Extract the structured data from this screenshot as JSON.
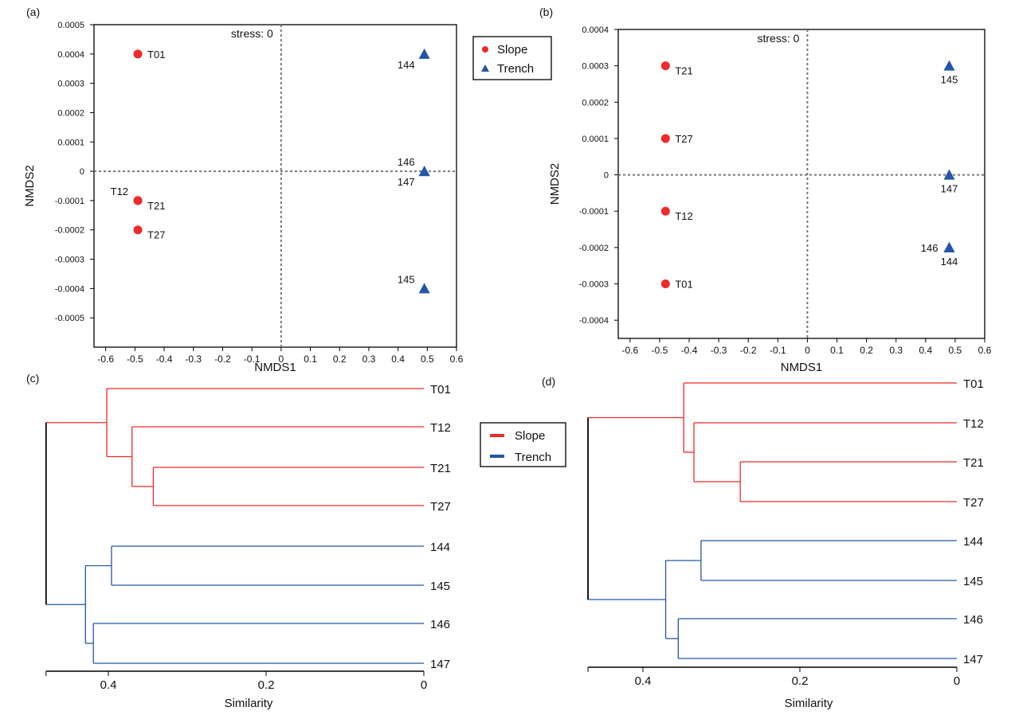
{
  "colors": {
    "Slope": "#ee2a2a",
    "Trench": "#2456a8",
    "root": "#000000",
    "axis": "#000000",
    "refline": "#777777"
  },
  "legend_scatter": {
    "items": [
      {
        "label": "Slope",
        "marker": "circle"
      },
      {
        "label": "Trench",
        "marker": "triangle"
      }
    ]
  },
  "legend_dendro": {
    "items": [
      {
        "label": "Slope"
      },
      {
        "label": "Trench"
      }
    ]
  },
  "chart_data": [
    {
      "panel": "(a)",
      "type": "scatter",
      "annotation": "stress: 0",
      "xlabel": "NMDS1",
      "ylabel": "NMDS2",
      "xlim": [
        -0.64,
        0.6
      ],
      "ylim": [
        -0.0006,
        0.0005
      ],
      "xticks": [
        "-0.6",
        "-0.5",
        "-0.4",
        "-0.3",
        "-0.2",
        "-0.1",
        "0",
        "0.1",
        "0.2",
        "0.3",
        "0.4",
        "0.5",
        "0.6"
      ],
      "yticks": [
        "0.0005",
        "0.0004",
        "0.0003",
        "0.0002",
        "0.0001",
        "0",
        "-0.0001",
        "-0.0002",
        "-0.0003",
        "-0.0004",
        "-0.0005"
      ],
      "reference_lines": {
        "x": 0,
        "y": 0,
        "style": "dotted"
      },
      "legend": "right, outside",
      "points": [
        {
          "label": "T01",
          "group": "Slope",
          "x": -0.49,
          "y": 0.0004,
          "label_position": "right"
        },
        {
          "label": "T12",
          "group": "Slope",
          "x": -0.49,
          "y": -0.0001,
          "label_position": "upper-left"
        },
        {
          "label": "T21",
          "group": "Slope",
          "x": -0.49,
          "y": -0.0001,
          "label_position": "lower-right"
        },
        {
          "label": "T27",
          "group": "Slope",
          "x": -0.49,
          "y": -0.0002,
          "label_position": "lower-right"
        },
        {
          "label": "144",
          "group": "Trench",
          "x": 0.49,
          "y": 0.0004,
          "label_position": "lower-left"
        },
        {
          "label": "146",
          "group": "Trench",
          "x": 0.49,
          "y": 0.0,
          "label_position": "upper-left"
        },
        {
          "label": "147",
          "group": "Trench",
          "x": 0.49,
          "y": 0.0,
          "label_position": "lower-left"
        },
        {
          "label": "145",
          "group": "Trench",
          "x": 0.49,
          "y": -0.0004,
          "label_position": "upper-left"
        }
      ]
    },
    {
      "panel": "(b)",
      "type": "scatter",
      "annotation": "stress: 0",
      "xlabel": "NMDS1",
      "ylabel": "NMDS2",
      "xlim": [
        -0.64,
        0.6
      ],
      "ylim": [
        -0.00045,
        0.0004
      ],
      "xticks": [
        "-0.6",
        "-0.5",
        "-0.4",
        "-0.3",
        "-0.2",
        "-0.1",
        "0",
        "0.1",
        "0.2",
        "0.3",
        "0.4",
        "0.5",
        "0.6"
      ],
      "yticks": [
        "0.0004",
        "0.0003",
        "0.0002",
        "0.0001",
        "0",
        "-0.0001",
        "-0.0002",
        "-0.0003",
        "-0.0004"
      ],
      "reference_lines": {
        "x": 0,
        "y": 0,
        "style": "dotted"
      },
      "points": [
        {
          "label": "T21",
          "group": "Slope",
          "x": -0.48,
          "y": 0.0003,
          "label_position": "lower-right"
        },
        {
          "label": "T27",
          "group": "Slope",
          "x": -0.48,
          "y": 0.0001,
          "label_position": "right"
        },
        {
          "label": "T12",
          "group": "Slope",
          "x": -0.48,
          "y": -0.0001,
          "label_position": "lower-right"
        },
        {
          "label": "T01",
          "group": "Slope",
          "x": -0.48,
          "y": -0.0003,
          "label_position": "right"
        },
        {
          "label": "145",
          "group": "Trench",
          "x": 0.48,
          "y": 0.0003,
          "label_position": "below"
        },
        {
          "label": "147",
          "group": "Trench",
          "x": 0.48,
          "y": 0.0,
          "label_position": "below"
        },
        {
          "label": "146",
          "group": "Trench",
          "x": 0.48,
          "y": -0.0002,
          "label_position": "left"
        },
        {
          "label": "144",
          "group": "Trench",
          "x": 0.48,
          "y": -0.0002,
          "label_position": "below"
        }
      ]
    },
    {
      "panel": "(c)",
      "type": "dendrogram",
      "xlabel": "Similarity",
      "xlim": [
        0.479,
        0
      ],
      "xticks": [
        "0.4",
        "0.2",
        "0"
      ],
      "leaves": [
        "T01",
        "T12",
        "T21",
        "T27",
        "144",
        "145",
        "146",
        "147"
      ],
      "legend": "top-right, outside",
      "tree": {
        "height": 0.479,
        "children": [
          {
            "height": 0.402,
            "group": "Slope",
            "children": [
              "T01",
              {
                "height": 0.37,
                "children": [
                  "T12",
                  {
                    "height": 0.343,
                    "children": [
                      "T21",
                      "T27"
                    ]
                  }
                ]
              }
            ]
          },
          {
            "height": 0.429,
            "group": "Trench",
            "children": [
              {
                "height": 0.396,
                "children": [
                  "144",
                  "145"
                ]
              },
              {
                "height": 0.419,
                "children": [
                  "146",
                  "147"
                ]
              }
            ]
          }
        ]
      }
    },
    {
      "panel": "(d)",
      "type": "dendrogram",
      "xlabel": "Similarity",
      "xlim": [
        0.47,
        0
      ],
      "xticks": [
        "0.4",
        "0.2",
        "0"
      ],
      "leaves": [
        "T01",
        "T12",
        "T21",
        "T27",
        "144",
        "145",
        "146",
        "147"
      ],
      "tree": {
        "height": 0.47,
        "children": [
          {
            "height": 0.348,
            "group": "Slope",
            "children": [
              "T01",
              {
                "height": 0.335,
                "children": [
                  "T12",
                  {
                    "height": 0.276,
                    "children": [
                      "T21",
                      "T27"
                    ]
                  }
                ]
              }
            ]
          },
          {
            "height": 0.371,
            "group": "Trench",
            "children": [
              {
                "height": 0.326,
                "children": [
                  "144",
                  "145"
                ]
              },
              {
                "height": 0.355,
                "children": [
                  "146",
                  "147"
                ]
              }
            ]
          }
        ]
      }
    }
  ]
}
